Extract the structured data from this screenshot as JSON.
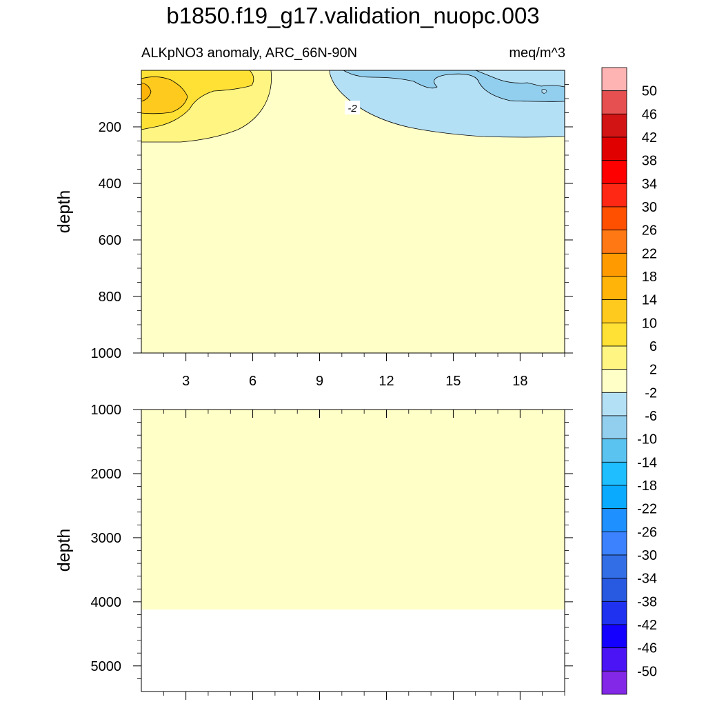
{
  "title": "b1850.f19_g17.validation_nuopc.003",
  "subtitle_left": "ALKpNO3 anomaly, ARC_66N-90N",
  "subtitle_right": "meq/m^3",
  "chart_data": [
    {
      "type": "contour",
      "panel": "upper",
      "xlabel": "",
      "ylabel": "depth",
      "xlim": [
        1,
        20
      ],
      "ylim": [
        1000,
        0
      ],
      "x_ticks": [
        3,
        6,
        9,
        12,
        15,
        18
      ],
      "y_ticks": [
        200,
        400,
        600,
        800,
        1000
      ],
      "contour_label": "-2",
      "regions": [
        {
          "level": "2 to 6",
          "color": "#fff582",
          "extent": "x 1-7, depth 0-260"
        },
        {
          "level": "6 to 10",
          "color": "#ffe135",
          "extent": "x 1-6, depth 0-175"
        },
        {
          "level": "10 to 14",
          "color": "#ffca1e",
          "extent": "x 1-3.5, depth 30-145"
        },
        {
          "level": "14 to 18",
          "color": "#ffb40a",
          "extent": "x 1-1.5, depth 40-115"
        },
        {
          "level": "-6 to -2",
          "color": "#b4e0f6",
          "extent": "x 10-20, depth 0-240"
        },
        {
          "level": "-10 to -6",
          "color": "#92cfee",
          "extent": "x 13.5-20, depth 0-115"
        },
        {
          "level": "-2 to 2",
          "color": "#ffffc8",
          "extent": "background"
        }
      ]
    },
    {
      "type": "contour",
      "panel": "lower",
      "xlabel": "",
      "ylabel": "depth",
      "xlim": [
        1,
        20
      ],
      "ylim": [
        5400,
        1000
      ],
      "y_ticks": [
        1000,
        2000,
        3000,
        4000,
        5000
      ],
      "data_bottom": 4120,
      "regions": [
        {
          "level": "-2 to 2",
          "color": "#ffffc8",
          "extent": "depth 1000-4120"
        }
      ]
    }
  ],
  "colorbar": {
    "labels": [
      "50",
      "46",
      "42",
      "38",
      "34",
      "30",
      "26",
      "22",
      "18",
      "14",
      "10",
      "6",
      "2",
      "-2",
      "-6",
      "-10",
      "-14",
      "-18",
      "-22",
      "-26",
      "-30",
      "-34",
      "-38",
      "-42",
      "-46",
      "-50"
    ],
    "colors": [
      "#ffb4b4",
      "#e65050",
      "#d21414",
      "#e10000",
      "#ff0000",
      "#ff2814",
      "#ff5000",
      "#ff7814",
      "#ff9b00",
      "#ffb40a",
      "#ffca1e",
      "#ffe135",
      "#fff582",
      "#ffffc8",
      "#b4e0f6",
      "#92cfee",
      "#5ac3f0",
      "#1ebeff",
      "#0aaaff",
      "#1e90ff",
      "#3c82ff",
      "#326ee6",
      "#285ae1",
      "#1e32f0",
      "#1400ff",
      "#4b14f5",
      "#8228e6"
    ]
  }
}
